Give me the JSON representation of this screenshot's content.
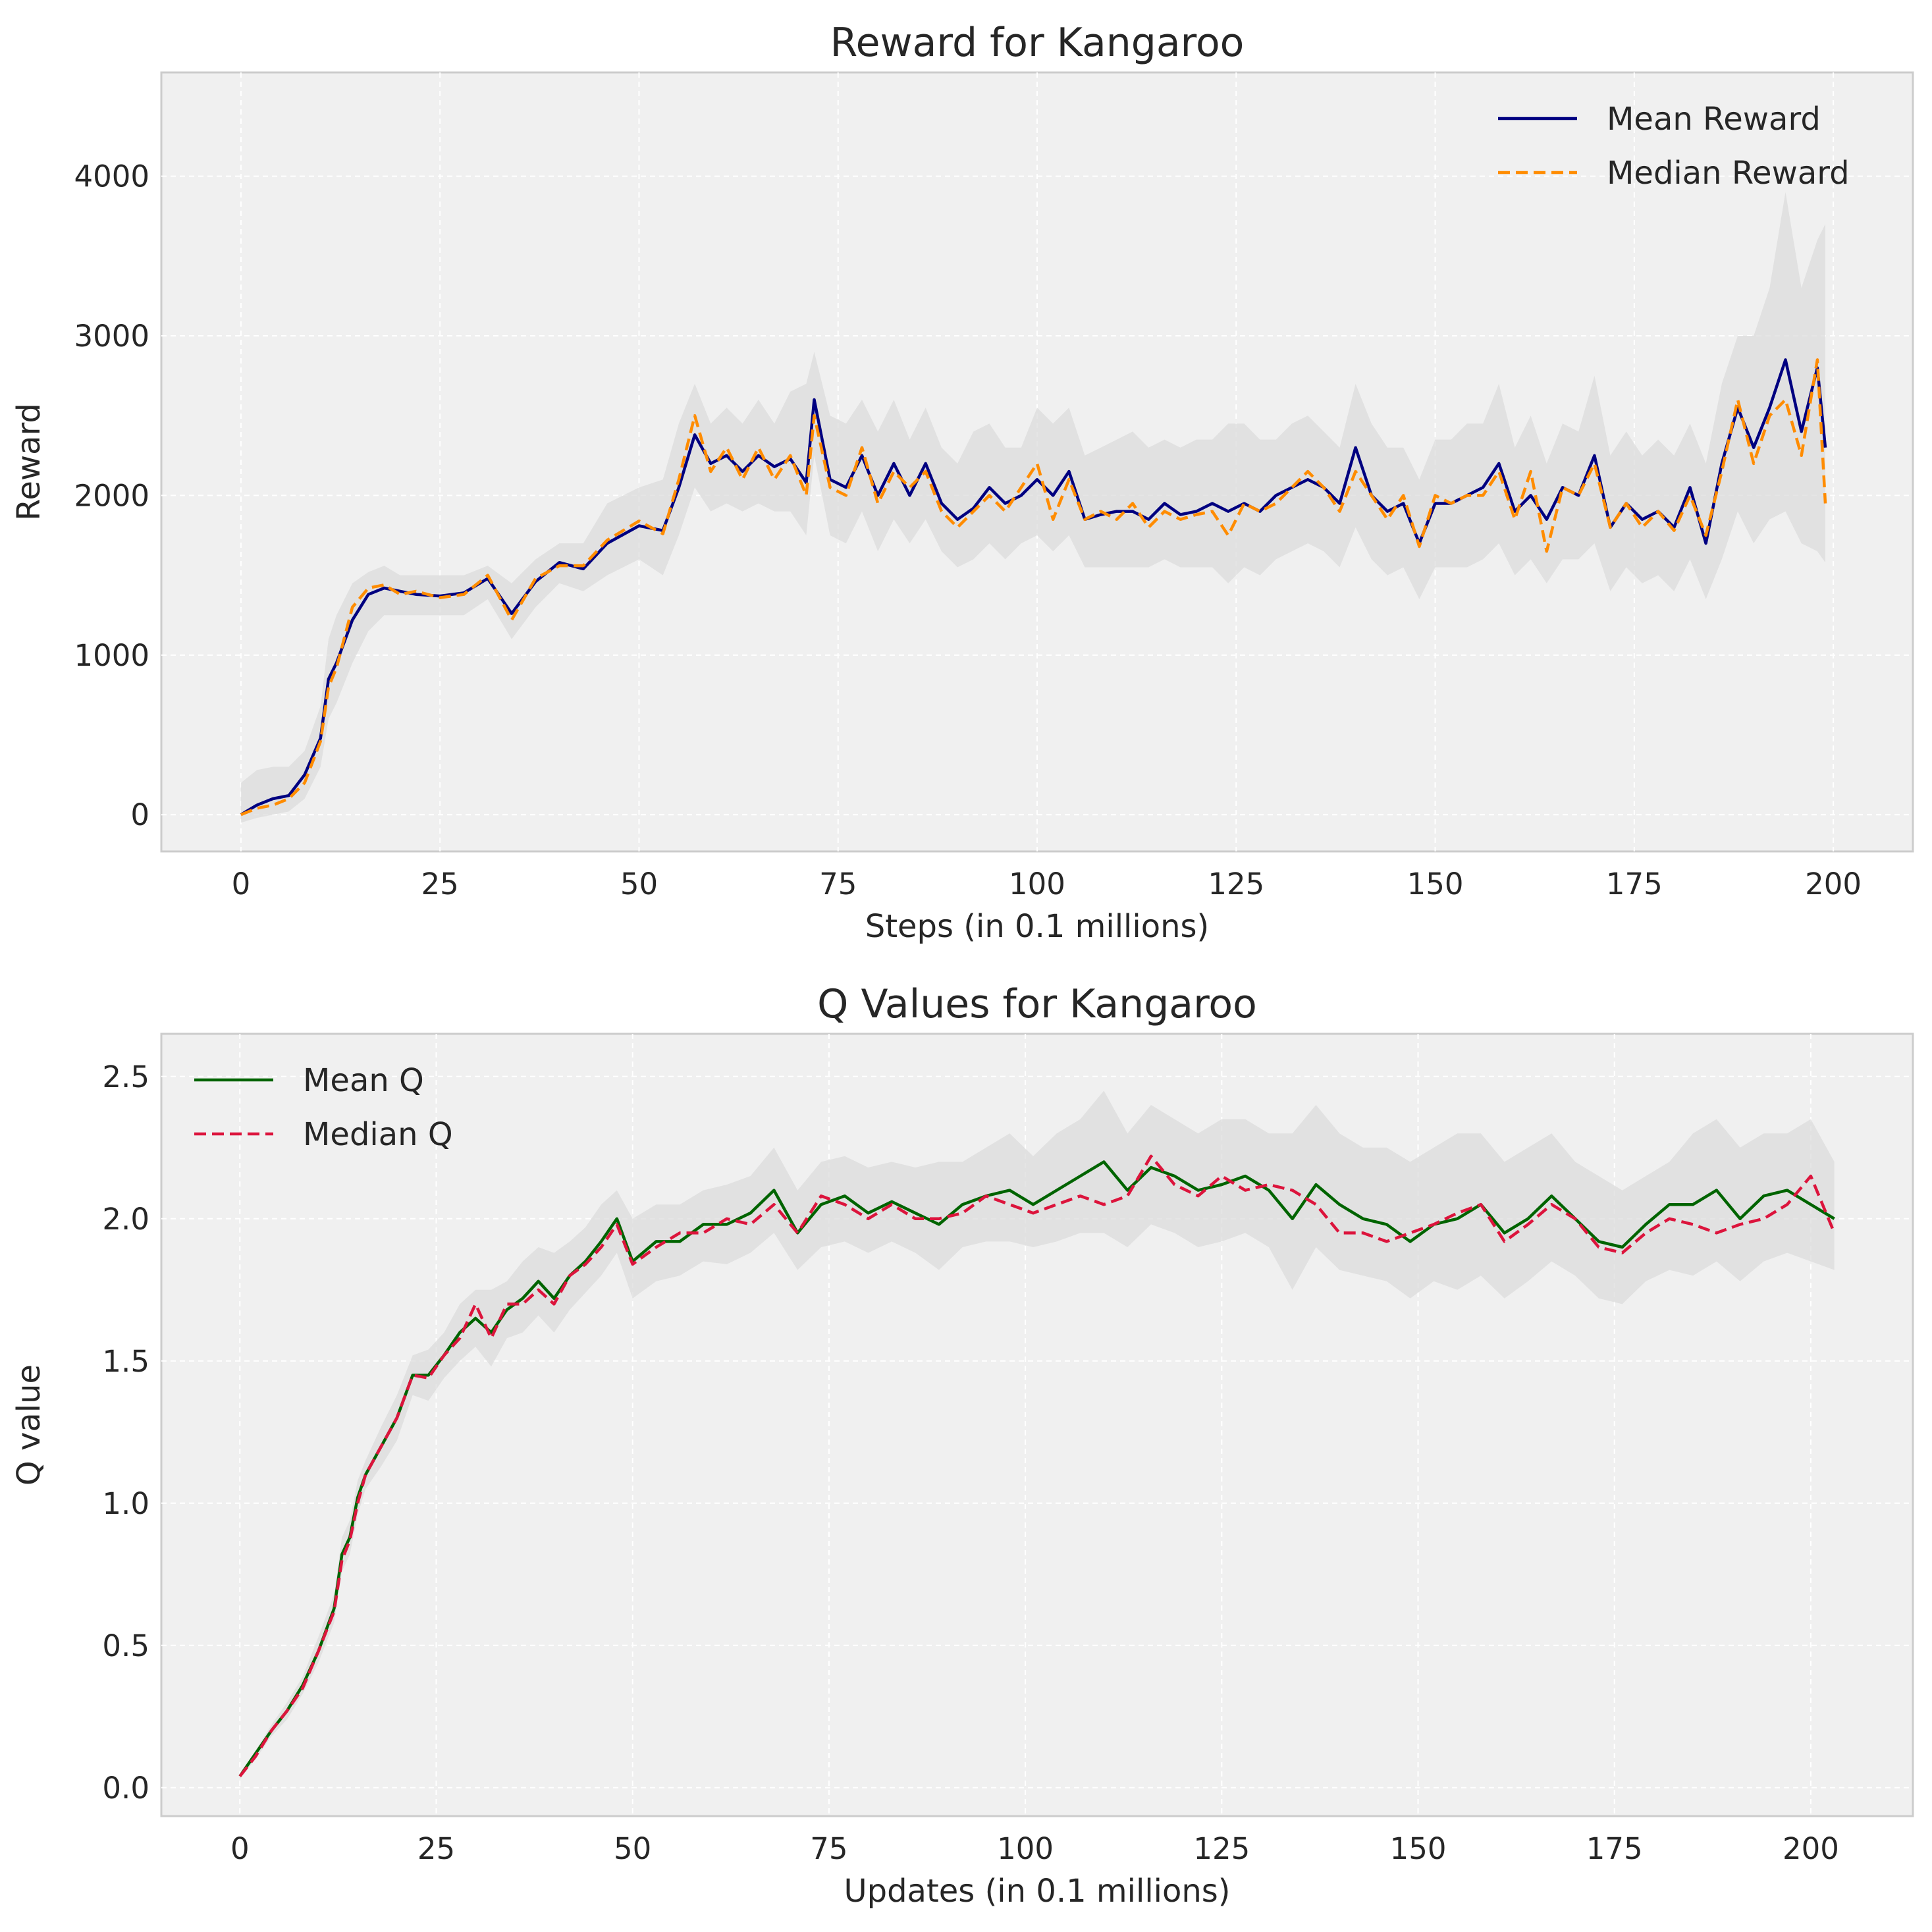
{
  "chart_data": [
    {
      "type": "line",
      "title": "Reward for Kangaroo",
      "xlabel": "Steps (in 0.1 millions)",
      "ylabel": "Reward",
      "xlim": [
        -10,
        210
      ],
      "ylim": [
        -230,
        4650
      ],
      "xticks": [
        0,
        25,
        50,
        75,
        100,
        125,
        150,
        175,
        200
      ],
      "yticks": [
        0,
        1000,
        2000,
        3000,
        4000
      ],
      "grid": true,
      "legend": "top-right",
      "x": [
        0,
        2,
        4,
        6,
        8,
        10,
        11,
        12,
        14,
        16,
        18,
        20,
        22,
        25,
        28,
        31,
        34,
        37,
        40,
        43,
        46,
        50,
        53,
        55,
        57,
        59,
        61,
        63,
        65,
        67,
        69,
        71,
        72,
        74,
        76,
        78,
        80,
        82,
        84,
        86,
        88,
        90,
        92,
        94,
        96,
        98,
        100,
        102,
        104,
        106,
        108,
        110,
        112,
        114,
        116,
        118,
        120,
        122,
        124,
        126,
        128,
        130,
        132,
        134,
        136,
        138,
        140,
        142,
        144,
        146,
        148,
        150,
        152,
        154,
        156,
        158,
        160,
        162,
        164,
        166,
        168,
        170,
        172,
        174,
        176,
        178,
        180,
        182,
        184,
        186,
        188,
        190,
        192,
        194,
        196,
        198,
        199
      ],
      "series": [
        {
          "name": "Mean Reward",
          "color": "#000080",
          "style": "solid",
          "values": [
            0,
            60,
            100,
            120,
            250,
            480,
            850,
            950,
            1220,
            1380,
            1420,
            1400,
            1380,
            1370,
            1390,
            1480,
            1260,
            1460,
            1580,
            1540,
            1700,
            1810,
            1780,
            2050,
            2380,
            2200,
            2250,
            2150,
            2250,
            2180,
            2230,
            2080,
            2600,
            2100,
            2050,
            2250,
            2000,
            2200,
            2000,
            2200,
            1950,
            1850,
            1920,
            2050,
            1950,
            2000,
            2100,
            2000,
            2150,
            1850,
            1880,
            1900,
            1900,
            1850,
            1950,
            1880,
            1900,
            1950,
            1900,
            1950,
            1900,
            2000,
            2050,
            2100,
            2050,
            1950,
            2300,
            2000,
            1900,
            1950,
            1700,
            1950,
            1950,
            2000,
            2050,
            2200,
            1900,
            2000,
            1850,
            2050,
            2000,
            2250,
            1800,
            1950,
            1850,
            1900,
            1800,
            2050,
            1700,
            2200,
            2550,
            2300,
            2550,
            2850,
            2400,
            2800,
            2300
          ]
        },
        {
          "name": "Median Reward",
          "color": "#ff8c00",
          "style": "dashed",
          "values": [
            0,
            40,
            60,
            100,
            200,
            460,
            800,
            920,
            1300,
            1420,
            1440,
            1380,
            1400,
            1360,
            1380,
            1500,
            1220,
            1480,
            1560,
            1560,
            1720,
            1840,
            1760,
            2100,
            2500,
            2150,
            2300,
            2100,
            2300,
            2100,
            2250,
            2000,
            2500,
            2050,
            2000,
            2300,
            1950,
            2150,
            2050,
            2150,
            1900,
            1800,
            1900,
            2000,
            1900,
            2050,
            2200,
            1850,
            2100,
            1850,
            1900,
            1850,
            1950,
            1800,
            1900,
            1850,
            1880,
            1900,
            1750,
            1950,
            1900,
            1950,
            2050,
            2150,
            2050,
            1900,
            2150,
            2000,
            1850,
            2000,
            1680,
            2000,
            1950,
            2000,
            2000,
            2150,
            1850,
            2150,
            1650,
            2050,
            2000,
            2200,
            1800,
            1950,
            1800,
            1900,
            1780,
            2000,
            1750,
            2150,
            2600,
            2200,
            2500,
            2600,
            2250,
            2850,
            1950
          ]
        },
        {
          "name": "Reward Range Upper",
          "color": "#dcdcdc",
          "style": "band",
          "values": [
            200,
            280,
            300,
            300,
            400,
            680,
            1100,
            1250,
            1450,
            1520,
            1560,
            1500,
            1500,
            1500,
            1500,
            1560,
            1450,
            1600,
            1700,
            1700,
            1950,
            2050,
            2100,
            2450,
            2700,
            2450,
            2550,
            2450,
            2600,
            2450,
            2650,
            2700,
            2900,
            2500,
            2450,
            2600,
            2400,
            2600,
            2350,
            2550,
            2300,
            2200,
            2400,
            2450,
            2300,
            2300,
            2550,
            2450,
            2550,
            2250,
            2300,
            2350,
            2400,
            2300,
            2350,
            2300,
            2350,
            2350,
            2450,
            2450,
            2350,
            2350,
            2450,
            2500,
            2400,
            2300,
            2700,
            2450,
            2300,
            2300,
            2100,
            2350,
            2350,
            2450,
            2450,
            2700,
            2300,
            2500,
            2200,
            2450,
            2400,
            2750,
            2250,
            2400,
            2250,
            2350,
            2250,
            2450,
            2200,
            2700,
            3000,
            3000,
            3300,
            3900,
            3300,
            3600,
            3700
          ]
        },
        {
          "name": "Reward Range Lower",
          "color": "#dcdcdc",
          "style": "band",
          "values": [
            -50,
            -20,
            0,
            20,
            100,
            300,
            600,
            700,
            950,
            1150,
            1250,
            1250,
            1250,
            1250,
            1250,
            1350,
            1100,
            1300,
            1450,
            1400,
            1500,
            1600,
            1500,
            1750,
            2050,
            1900,
            1950,
            1900,
            1950,
            1900,
            1900,
            1750,
            2250,
            1750,
            1700,
            1900,
            1650,
            1850,
            1700,
            1850,
            1650,
            1550,
            1600,
            1700,
            1600,
            1700,
            1750,
            1650,
            1750,
            1550,
            1550,
            1550,
            1550,
            1550,
            1600,
            1550,
            1550,
            1550,
            1450,
            1550,
            1500,
            1600,
            1650,
            1700,
            1650,
            1550,
            1800,
            1600,
            1500,
            1550,
            1350,
            1550,
            1550,
            1550,
            1600,
            1700,
            1500,
            1600,
            1450,
            1600,
            1600,
            1700,
            1400,
            1550,
            1450,
            1500,
            1400,
            1600,
            1350,
            1600,
            1900,
            1700,
            1850,
            1900,
            1700,
            1650,
            1580
          ]
        }
      ]
    },
    {
      "type": "line",
      "title": "Q Values for Kangaroo",
      "xlabel": "Updates (in 0.1 millions)",
      "ylabel": "Q value",
      "xlim": [
        -10,
        213
      ],
      "ylim": [
        -0.1,
        2.65
      ],
      "xticks": [
        0,
        25,
        50,
        75,
        100,
        125,
        150,
        175,
        200
      ],
      "yticks": [
        0.0,
        0.5,
        1.0,
        1.5,
        2.0,
        2.5
      ],
      "grid": true,
      "legend": "top-left",
      "x": [
        0,
        2,
        4,
        6,
        8,
        10,
        12,
        13,
        14,
        15,
        16,
        18,
        20,
        22,
        24,
        26,
        28,
        30,
        32,
        34,
        36,
        38,
        40,
        42,
        44,
        46,
        48,
        50,
        53,
        56,
        59,
        62,
        65,
        68,
        71,
        74,
        77,
        80,
        83,
        86,
        89,
        92,
        95,
        98,
        101,
        104,
        107,
        110,
        113,
        116,
        119,
        122,
        125,
        128,
        131,
        134,
        137,
        140,
        143,
        146,
        149,
        152,
        155,
        158,
        161,
        164,
        167,
        170,
        173,
        176,
        179,
        182,
        185,
        188,
        191,
        194,
        197,
        200,
        203
      ],
      "series": [
        {
          "name": "Mean Q",
          "color": "#006400",
          "style": "solid",
          "values": [
            0.04,
            0.12,
            0.2,
            0.27,
            0.36,
            0.48,
            0.63,
            0.82,
            0.88,
            1.02,
            1.1,
            1.2,
            1.3,
            1.45,
            1.45,
            1.52,
            1.6,
            1.65,
            1.6,
            1.68,
            1.72,
            1.78,
            1.72,
            1.8,
            1.85,
            1.92,
            2.0,
            1.85,
            1.92,
            1.92,
            1.98,
            1.98,
            2.02,
            2.1,
            1.95,
            2.05,
            2.08,
            2.02,
            2.06,
            2.02,
            1.98,
            2.05,
            2.08,
            2.1,
            2.05,
            2.1,
            2.15,
            2.2,
            2.1,
            2.18,
            2.15,
            2.1,
            2.12,
            2.15,
            2.1,
            2.0,
            2.12,
            2.05,
            2.0,
            1.98,
            1.92,
            1.98,
            2.0,
            2.05,
            1.95,
            2.0,
            2.08,
            2.0,
            1.92,
            1.9,
            1.98,
            2.05,
            2.05,
            2.1,
            2.0,
            2.08,
            2.1,
            2.05,
            2.0
          ]
        },
        {
          "name": "Median Q",
          "color": "#dc143c",
          "style": "dashed",
          "values": [
            0.04,
            0.11,
            0.2,
            0.27,
            0.35,
            0.48,
            0.62,
            0.8,
            0.87,
            1.0,
            1.1,
            1.2,
            1.3,
            1.45,
            1.44,
            1.52,
            1.58,
            1.7,
            1.58,
            1.7,
            1.7,
            1.75,
            1.7,
            1.8,
            1.84,
            1.9,
            1.98,
            1.84,
            1.9,
            1.95,
            1.95,
            2.0,
            1.98,
            2.05,
            1.95,
            2.08,
            2.05,
            2.0,
            2.05,
            2.0,
            2.0,
            2.02,
            2.08,
            2.05,
            2.02,
            2.05,
            2.08,
            2.05,
            2.08,
            2.22,
            2.12,
            2.08,
            2.15,
            2.1,
            2.12,
            2.1,
            2.05,
            1.95,
            1.95,
            1.92,
            1.95,
            1.98,
            2.02,
            2.05,
            1.92,
            1.98,
            2.05,
            2.0,
            1.9,
            1.88,
            1.95,
            2.0,
            1.98,
            1.95,
            1.98,
            2.0,
            2.05,
            2.15,
            1.95
          ]
        },
        {
          "name": "Q Range Upper",
          "color": "#dcdcdc",
          "style": "band",
          "values": [
            0.05,
            0.13,
            0.22,
            0.3,
            0.39,
            0.53,
            0.68,
            0.88,
            0.94,
            1.08,
            1.15,
            1.27,
            1.38,
            1.52,
            1.54,
            1.6,
            1.7,
            1.75,
            1.75,
            1.78,
            1.85,
            1.9,
            1.88,
            1.92,
            1.97,
            2.05,
            2.1,
            2.0,
            2.05,
            2.05,
            2.1,
            2.12,
            2.15,
            2.25,
            2.1,
            2.2,
            2.22,
            2.18,
            2.2,
            2.18,
            2.2,
            2.2,
            2.25,
            2.3,
            2.22,
            2.3,
            2.35,
            2.45,
            2.3,
            2.4,
            2.35,
            2.3,
            2.35,
            2.35,
            2.3,
            2.3,
            2.4,
            2.3,
            2.25,
            2.25,
            2.2,
            2.25,
            2.3,
            2.3,
            2.2,
            2.25,
            2.3,
            2.2,
            2.15,
            2.1,
            2.15,
            2.2,
            2.3,
            2.35,
            2.25,
            2.3,
            2.3,
            2.35,
            2.2
          ]
        },
        {
          "name": "Q Range Lower",
          "color": "#dcdcdc",
          "style": "band",
          "values": [
            0.03,
            0.1,
            0.18,
            0.24,
            0.33,
            0.44,
            0.58,
            0.76,
            0.82,
            0.96,
            1.05,
            1.13,
            1.22,
            1.38,
            1.36,
            1.44,
            1.5,
            1.55,
            1.48,
            1.58,
            1.6,
            1.66,
            1.6,
            1.68,
            1.74,
            1.8,
            1.88,
            1.72,
            1.78,
            1.8,
            1.85,
            1.84,
            1.88,
            1.95,
            1.82,
            1.9,
            1.92,
            1.88,
            1.92,
            1.88,
            1.82,
            1.9,
            1.92,
            1.92,
            1.9,
            1.92,
            1.95,
            1.95,
            1.9,
            1.98,
            1.95,
            1.9,
            1.92,
            1.95,
            1.9,
            1.75,
            1.9,
            1.82,
            1.8,
            1.78,
            1.72,
            1.78,
            1.75,
            1.8,
            1.72,
            1.78,
            1.85,
            1.8,
            1.72,
            1.7,
            1.78,
            1.82,
            1.8,
            1.85,
            1.78,
            1.85,
            1.88,
            1.85,
            1.82
          ]
        }
      ]
    }
  ],
  "charts_meta": {
    "plot_bg": "#f0f0f0",
    "grid_color": "#ffffff",
    "spine_color": "#cccccc",
    "band_color": "#dcdcdc"
  }
}
